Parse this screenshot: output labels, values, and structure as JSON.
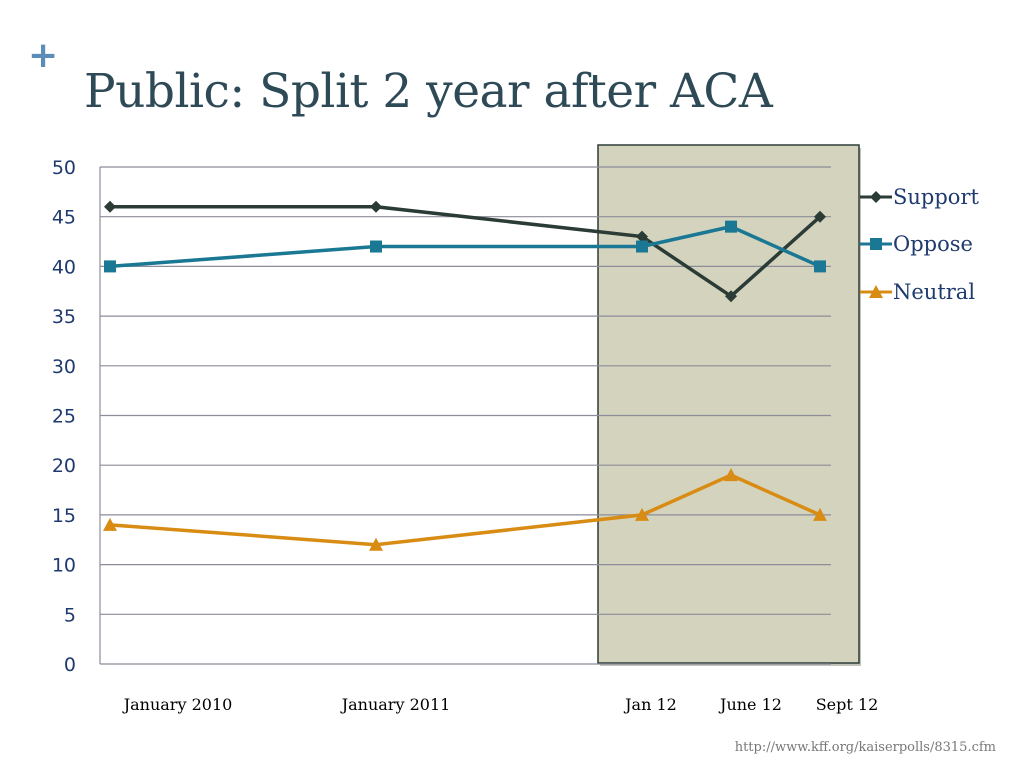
{
  "slide": {
    "plus": "+",
    "title": "Public: Split 2 year after ACA",
    "source": "http://www.kff.org/kaiserpolls/8315.cfm"
  },
  "colors": {
    "title": "#2e4a56",
    "plus": "#5b8db8",
    "grid": "#8c8c9a",
    "highlight_fill": "#d4d3bd",
    "highlight_border": "#2c3c38",
    "tick_text": "#1f3a6e",
    "support": "#2b3b36",
    "oppose": "#1a7894",
    "neutral": "#d98c14"
  },
  "chart_data": {
    "type": "line",
    "x": [
      "January 2010",
      "January 2011",
      "Jan 12",
      "June 12",
      "Sept 12"
    ],
    "ylim": [
      0,
      50
    ],
    "yticks": [
      0,
      5,
      10,
      15,
      20,
      25,
      30,
      35,
      40,
      45,
      50
    ],
    "grid": true,
    "legend": "right",
    "highlight": {
      "from": "Jan 12",
      "to": "Sept 12"
    },
    "series": [
      {
        "name": "Support",
        "marker": "diamond",
        "color": "#2b3b36",
        "values": [
          46,
          46,
          43,
          37,
          45
        ]
      },
      {
        "name": "Oppose",
        "marker": "square",
        "color": "#1a7894",
        "values": [
          40,
          42,
          42,
          44,
          40
        ]
      },
      {
        "name": "Neutral",
        "marker": "triangle",
        "color": "#d98c14",
        "values": [
          14,
          12,
          15,
          19,
          15
        ]
      }
    ]
  }
}
